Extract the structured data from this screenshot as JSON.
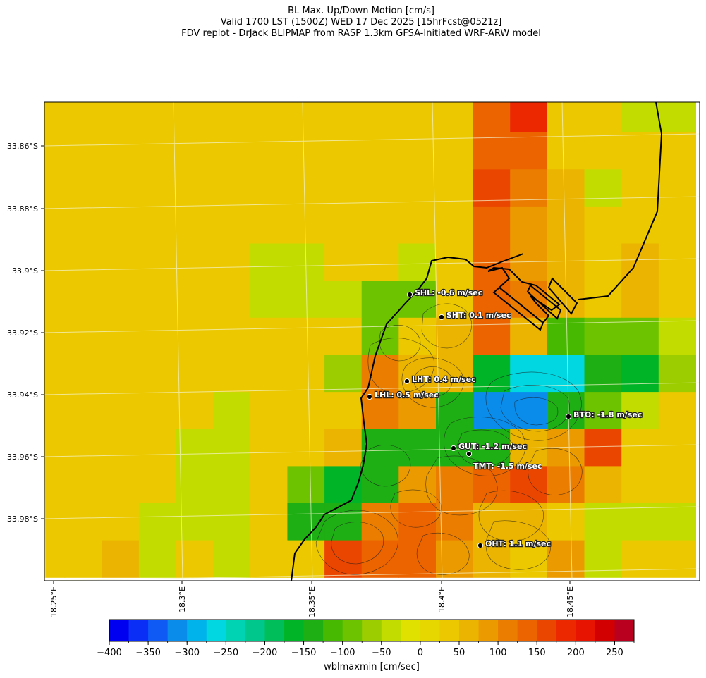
{
  "title": {
    "line1": "BL Max. Up/Down Motion [cm/s]",
    "line2": "Valid 1700 LST (1500Z) WED 17 Dec 2025 [15hrFcst@0521z]",
    "line3": "FDV replot - DrJack BLIPMAP from RASP 1.3km GFSA-Initiated WRF-ARW model"
  },
  "map": {
    "lat_labels": [
      "33.86°S",
      "33.88°S",
      "33.9°S",
      "33.92°S",
      "33.94°S",
      "33.96°S",
      "33.98°S"
    ],
    "lon_labels": [
      "18.25°E",
      "18.3°E",
      "18.35°E",
      "18.4°E",
      "18.45°E"
    ],
    "stations": [
      {
        "code": "SHL",
        "label": "SHL: -0.6 m/sec"
      },
      {
        "code": "SHT",
        "label": "SHT: 0.1 m/sec"
      },
      {
        "code": "LHT",
        "label": "LHT: 0.4 m/sec"
      },
      {
        "code": "LHL",
        "label": "LHL: 0.5 m/sec"
      },
      {
        "code": "BTO",
        "label": "BTO: -1.8 m/sec"
      },
      {
        "code": "GUT",
        "label": "GUT: -1.2 m/sec"
      },
      {
        "code": "TMT",
        "label": "TMT: -1.5 m/sec"
      },
      {
        "code": "OHT",
        "label": "OHT: 1.1 m/sec"
      }
    ],
    "grid_values": [
      [
        25,
        25,
        25,
        25,
        25,
        25,
        25,
        25,
        25,
        25,
        25,
        25,
        140,
        175,
        25,
        25,
        -50,
        -50
      ],
      [
        25,
        25,
        25,
        25,
        25,
        25,
        25,
        25,
        25,
        25,
        25,
        25,
        140,
        140,
        25,
        25,
        25,
        25
      ],
      [
        25,
        25,
        25,
        25,
        25,
        25,
        25,
        25,
        25,
        25,
        25,
        40,
        160,
        110,
        50,
        -50,
        25,
        25
      ],
      [
        25,
        25,
        25,
        25,
        25,
        25,
        25,
        25,
        25,
        25,
        25,
        25,
        140,
        80,
        60,
        25,
        25,
        40
      ],
      [
        25,
        25,
        25,
        25,
        25,
        25,
        -50,
        -50,
        25,
        25,
        -50,
        25,
        140,
        80,
        60,
        25,
        60,
        40
      ],
      [
        25,
        25,
        25,
        25,
        25,
        25,
        -50,
        -50,
        -50,
        -100,
        -100,
        40,
        140,
        120,
        60,
        25,
        60,
        40
      ],
      [
        25,
        25,
        25,
        25,
        25,
        25,
        25,
        25,
        25,
        -100,
        40,
        60,
        140,
        60,
        -110,
        -80,
        -80,
        -50
      ],
      [
        25,
        25,
        25,
        25,
        25,
        25,
        25,
        25,
        -70,
        100,
        70,
        60,
        -160,
        -270,
        -260,
        -140,
        -160,
        -70
      ],
      [
        25,
        25,
        25,
        25,
        25,
        -50,
        25,
        25,
        25,
        100,
        80,
        -150,
        -320,
        -320,
        -130,
        -80,
        -50,
        25
      ],
      [
        25,
        25,
        25,
        25,
        -50,
        -50,
        25,
        25,
        60,
        -130,
        -130,
        -150,
        -150,
        60,
        80,
        150,
        25,
        25
      ],
      [
        25,
        25,
        25,
        25,
        -50,
        -50,
        25,
        -100,
        -160,
        -130,
        80,
        100,
        140,
        170,
        120,
        70,
        25,
        25
      ],
      [
        25,
        25,
        40,
        -50,
        -50,
        -50,
        25,
        -130,
        -130,
        110,
        140,
        120,
        70,
        60,
        25,
        -50,
        -50,
        -50
      ],
      [
        25,
        25,
        50,
        -50,
        25,
        -50,
        25,
        25,
        160,
        130,
        140,
        90,
        50,
        25,
        80,
        -50,
        25,
        25
      ]
    ]
  },
  "colorbar": {
    "label": "wblmaxmin [cm/sec]",
    "tick_labels": [
      "−400",
      "−350",
      "−300",
      "−250",
      "−200",
      "−150",
      "−100",
      "−50",
      "0",
      "50",
      "100",
      "150",
      "200",
      "250"
    ],
    "colors": [
      "#0000f0",
      "#0a2ef5",
      "#0f5af5",
      "#0a8ceb",
      "#00b4eb",
      "#00d7e1",
      "#00d2b4",
      "#00c88c",
      "#00be5a",
      "#00b428",
      "#1eaf14",
      "#46b900",
      "#6ec300",
      "#9bcd00",
      "#c3dc00",
      "#e1e100",
      "#e6d700",
      "#ebc800",
      "#ebb400",
      "#eb9b00",
      "#eb7d00",
      "#eb6400",
      "#eb4600",
      "#eb2800",
      "#e61400",
      "#d20000",
      "#b9001e"
    ]
  }
}
